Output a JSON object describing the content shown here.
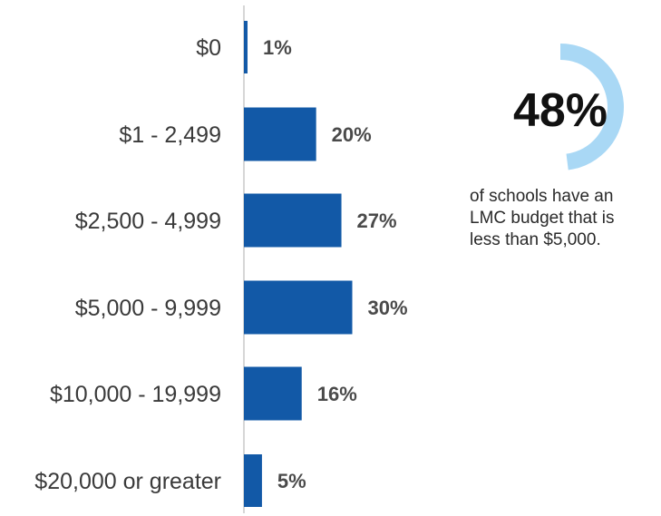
{
  "chart_data": {
    "type": "bar",
    "orientation": "horizontal",
    "categories": [
      "$0",
      "$1 - 2,499",
      "$2,500 - 4,999",
      "$5,000 - 9,999",
      "$10,000 - 19,999",
      "$20,000 or greater"
    ],
    "values": [
      1,
      20,
      27,
      30,
      16,
      5
    ],
    "value_labels": [
      "1%",
      "20%",
      "27%",
      "30%",
      "16%",
      "5%"
    ],
    "xlim": [
      0,
      30
    ],
    "grid": false,
    "bar_color": "#1259a7"
  },
  "callout": {
    "percent_value": 48,
    "percent_label": "48%",
    "ring_color": "#a9d8f5",
    "lines": [
      "of schools have an",
      "LMC budget that is",
      "less than $5,000."
    ]
  }
}
